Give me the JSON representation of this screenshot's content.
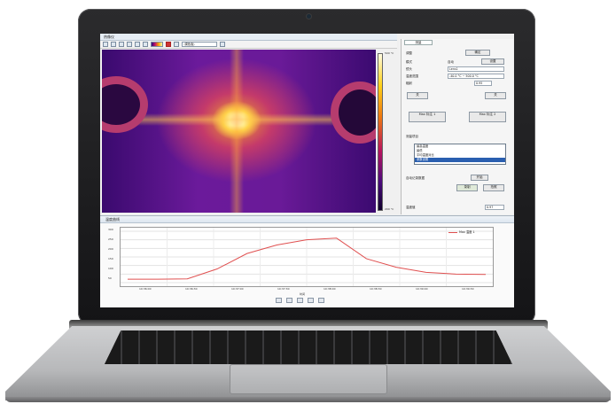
{
  "window": {
    "title": "热像仪"
  },
  "toolbar": {
    "combo_label": "-调色板-"
  },
  "colorbar": {
    "max_label": "500 °C",
    "min_label": "200 °C"
  },
  "panel": {
    "tab": "测量",
    "row_title": "调整",
    "btn_apply": "确定",
    "label_mode": "模式",
    "checkbox_auto": "自动",
    "btn_mode": "设置",
    "label_lens": "镜头",
    "lens_value": "Lens1",
    "label_range": "温度范围",
    "range_value": "-40.0 °C ~ 500.0 °C",
    "label_emis": "辐射",
    "emis_value": "0.95",
    "btn_left": "关",
    "btn_right": "关",
    "chart_mark_btn1": "Max 标注 1",
    "chart_mark_btn2": "Max 标注 2",
    "list_title": "测量项目",
    "list_items": [
      "最高温度",
      "最低",
      "平均温度对比",
      "参数设置",
      "区域温度"
    ],
    "option_auto_capture": "自动记录数据",
    "btn_start": "开始",
    "btn_stop": "停止",
    "btn_record": "录制",
    "btn_snapshot": "拍照",
    "footer_label": "温度值",
    "footer_value": "0.97"
  },
  "graph": {
    "title": "温度曲线",
    "legend": "Max 温度 1",
    "xaxis_label": "时间",
    "y_ticks": [
      "300",
      "250",
      "200",
      "150",
      "100",
      "50"
    ],
    "x_ticks": [
      "10:36:00",
      "10:36:30",
      "10:37:00",
      "10:37:30",
      "10:38:00",
      "10:38:30",
      "10:39:00",
      "10:39:30"
    ]
  },
  "chart_data": {
    "type": "line",
    "x": [
      "10:36:00",
      "10:36:10",
      "10:36:20",
      "10:36:30",
      "10:36:40",
      "10:37:00",
      "10:37:20",
      "10:37:26",
      "10:37:40",
      "10:38:00",
      "10:38:30",
      "10:39:00",
      "10:39:30"
    ],
    "series": [
      {
        "name": "Max 温度 1",
        "values": [
          20,
          20,
          22,
          80,
          170,
          220,
          250,
          260,
          140,
          90,
          60,
          50,
          48
        ]
      }
    ],
    "ylim": [
      0,
      300
    ],
    "xlabel": "时间",
    "ylabel": "",
    "grid": true,
    "legend_position": "top-right",
    "series_color": "#e05050"
  }
}
